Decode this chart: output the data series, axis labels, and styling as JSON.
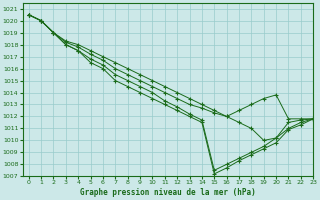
{
  "title": "Graphe pression niveau de la mer (hPa)",
  "xlim": [
    -0.5,
    23
  ],
  "ylim": [
    1007,
    1021.5
  ],
  "xticks": [
    0,
    1,
    2,
    3,
    4,
    5,
    6,
    7,
    8,
    9,
    10,
    11,
    12,
    13,
    14,
    15,
    16,
    17,
    18,
    19,
    20,
    21,
    22,
    23
  ],
  "yticks": [
    1007,
    1008,
    1009,
    1010,
    1011,
    1012,
    1013,
    1014,
    1015,
    1016,
    1017,
    1018,
    1019,
    1020,
    1021
  ],
  "line_color": "#1a6b1a",
  "bg_color": "#cce8e8",
  "grid_color": "#99cccc",
  "curves": [
    [
      1020.5,
      1020.0,
      1019.0,
      1018.0,
      1017.5,
      1016.5,
      1016.0,
      1015.0,
      1014.5,
      1014.0,
      1013.5,
      1013.0,
      1012.5,
      1012.0,
      1011.5,
      1007.2,
      1007.7,
      1008.3,
      1008.8,
      1009.3,
      1009.8,
      1010.9,
      1011.3,
      1011.8
    ],
    [
      1020.5,
      1020.0,
      1019.0,
      1018.0,
      1017.5,
      1016.8,
      1016.3,
      1015.5,
      1015.0,
      1014.5,
      1014.0,
      1013.3,
      1012.8,
      1012.2,
      1011.7,
      1007.5,
      1008.0,
      1008.5,
      1009.0,
      1009.5,
      1010.2,
      1011.0,
      1011.5,
      1011.8
    ],
    [
      1020.5,
      1020.0,
      1019.0,
      1018.2,
      1017.8,
      1017.2,
      1016.7,
      1016.0,
      1015.5,
      1015.0,
      1014.5,
      1014.0,
      1013.5,
      1013.0,
      1012.7,
      1012.3,
      1012.0,
      1012.5,
      1013.0,
      1013.5,
      1013.8,
      1011.8,
      1011.8,
      1011.8
    ],
    [
      1020.5,
      1020.0,
      1019.0,
      1018.3,
      1018.0,
      1017.5,
      1017.0,
      1016.5,
      1016.0,
      1015.5,
      1015.0,
      1014.5,
      1014.0,
      1013.5,
      1013.0,
      1012.5,
      1012.0,
      1011.5,
      1011.0,
      1010.0,
      1010.2,
      1011.5,
      1011.7,
      1011.8
    ]
  ],
  "tick_fontsize": 4.5,
  "label_fontsize": 5.5
}
